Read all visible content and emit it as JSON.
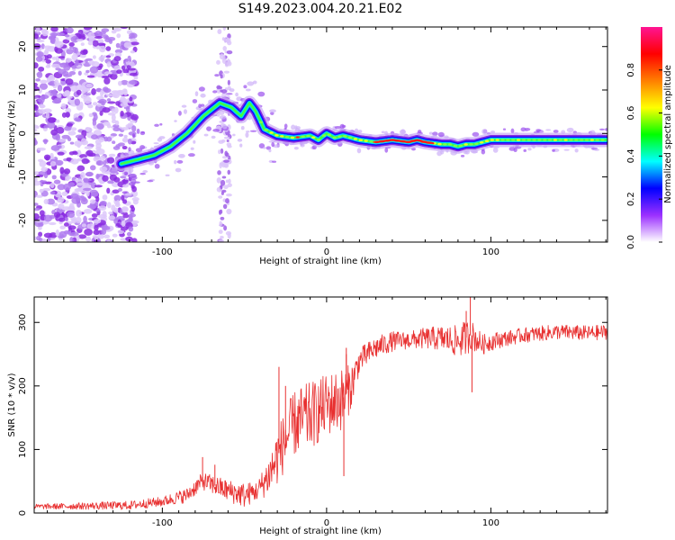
{
  "title": "S149.2023.004.20.21.E02",
  "chart_data": [
    {
      "type": "heatmap",
      "name": "spectrogram",
      "xlabel": "Height of straight line (km)",
      "ylabel": "Frequency (Hz)",
      "xlim": [
        -178,
        171
      ],
      "ylim": [
        -25,
        24.5
      ],
      "xticks": [
        -100,
        0,
        100
      ],
      "yticks": [
        -20,
        -10,
        0,
        10,
        20
      ],
      "ridge": {
        "x": [
          -125,
          -115,
          -105,
          -95,
          -85,
          -75,
          -65,
          -58,
          -52,
          -47,
          -43,
          -38,
          -30,
          -20,
          -10,
          -5,
          0,
          5,
          10,
          20,
          30,
          40,
          50,
          55,
          60,
          70,
          75,
          80,
          85,
          90,
          95,
          100,
          110,
          120,
          130,
          140,
          150,
          160,
          170
        ],
        "y": [
          -7,
          -6,
          -5,
          -3,
          0,
          4,
          7,
          6,
          4,
          7,
          5,
          1,
          -0.5,
          -1,
          -0.5,
          -1.5,
          0,
          -1,
          -0.5,
          -1.5,
          -2,
          -1.5,
          -2,
          -1.5,
          -2,
          -2.5,
          -2.5,
          -3,
          -2.5,
          -2.5,
          -2,
          -1.5,
          -1.5,
          -1.5,
          -1.5,
          -1.5,
          -1.5,
          -1.5,
          -1.5
        ]
      },
      "hot_segment": {
        "x_start": 30,
        "x_end": 65
      }
    },
    {
      "type": "line",
      "name": "snr",
      "xlabel": "Height of straight line (km)",
      "ylabel": "SNR (10 * v/v)",
      "xlim": [
        -178,
        171
      ],
      "ylim": [
        0,
        340
      ],
      "xticks": [
        -100,
        0,
        100
      ],
      "yticks": [
        0,
        100,
        200,
        300
      ],
      "color": "#e83030",
      "trend": {
        "x": [
          -178,
          -120,
          -100,
          -85,
          -78,
          -75,
          -70,
          -60,
          -50,
          -42,
          -35,
          -28,
          -20,
          -12,
          -5,
          0,
          5,
          10,
          15,
          20,
          30,
          40,
          50,
          60,
          70,
          80,
          88,
          95,
          100,
          110,
          120,
          140,
          160,
          171
        ],
        "y": [
          10,
          12,
          18,
          28,
          45,
          50,
          45,
          35,
          28,
          35,
          60,
          100,
          140,
          150,
          160,
          170,
          175,
          180,
          200,
          240,
          260,
          270,
          272,
          275,
          275,
          270,
          280,
          265,
          270,
          275,
          280,
          285,
          283,
          285
        ]
      },
      "noise": {
        "x": [
          -178,
          -100,
          -50,
          -42,
          -30,
          -15,
          0,
          10,
          20,
          50,
          70,
          85,
          95,
          110,
          171
        ],
        "amp": [
          4,
          8,
          20,
          15,
          45,
          55,
          50,
          50,
          20,
          14,
          20,
          28,
          16,
          12,
          12
        ]
      },
      "spikes": [
        {
          "x": 87.5,
          "y": 340
        },
        {
          "x": 88.5,
          "y": 190
        },
        {
          "x": 85,
          "y": 318
        },
        {
          "x": 10.5,
          "y": 58
        },
        {
          "x": 12,
          "y": 250
        },
        {
          "x": -29,
          "y": 230
        },
        {
          "x": -25,
          "y": 200
        },
        {
          "x": -75.5,
          "y": 88
        },
        {
          "x": -68,
          "y": 76
        },
        {
          "x": 12,
          "y": 260
        }
      ]
    },
    {
      "type": "colorbar",
      "name": "colorbar",
      "label": "Normalized spectral amplitude",
      "range": [
        0,
        1
      ],
      "ticks": [
        0.0,
        0.2,
        0.4,
        0.6,
        0.8
      ],
      "tick_labels": [
        "0.0",
        "0.2",
        "0.4",
        "0.6",
        "0.8"
      ],
      "colors": [
        "#ffffff",
        "#9b30ff",
        "#0000ff",
        "#00ffff",
        "#00ff00",
        "#ffff00",
        "#ff7f00",
        "#ff0000",
        "#ff1493"
      ]
    }
  ]
}
